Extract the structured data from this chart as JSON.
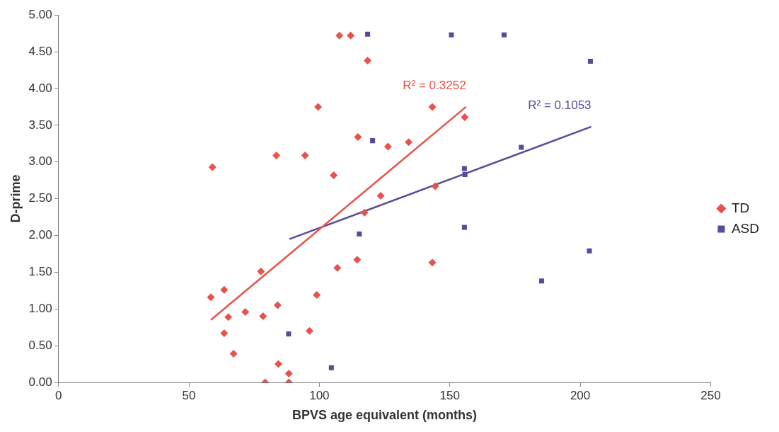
{
  "chart_data": {
    "type": "scatter",
    "xlabel": "BPVS age equivalent (months)",
    "ylabel": "D-prime",
    "xlim": [
      0,
      250
    ],
    "xticks": [
      0,
      50,
      100,
      150,
      200,
      250
    ],
    "ylim": [
      0,
      5
    ],
    "yticks": [
      {
        "value": 0,
        "label": "0.00"
      },
      {
        "value": 0.5,
        "label": "0.50"
      },
      {
        "value": 1,
        "label": "1.00"
      },
      {
        "value": 1.5,
        "label": "1.50"
      },
      {
        "value": 2,
        "label": "2.00"
      },
      {
        "value": 2.5,
        "label": "2.50"
      },
      {
        "value": 3,
        "label": "3.00"
      },
      {
        "value": 3.5,
        "label": "3.50"
      },
      {
        "value": 4,
        "label": "4.00"
      },
      {
        "value": 4.5,
        "label": "4.50"
      },
      {
        "value": 5,
        "label": "5.00"
      }
    ],
    "grid": false,
    "legend": "right",
    "series": [
      {
        "name": "TD",
        "color": "#e8524a",
        "marker": "diamond",
        "x": [
          59,
          58.4,
          63.5,
          63.5,
          65.1,
          67.1,
          71.6,
          77.6,
          78.4,
          79.2,
          83.5,
          84,
          84.3,
          88.3,
          88.3,
          94.5,
          96.2,
          99,
          99.5,
          105.5,
          106.9,
          107.7,
          112,
          114.5,
          114.8,
          118.5,
          117.3,
          123.5,
          126.3,
          134.2,
          143.3,
          143.3,
          144.4,
          155.7
        ],
        "values": [
          2.93,
          1.16,
          1.26,
          0.67,
          0.89,
          0.39,
          0.96,
          1.51,
          0.9,
          0,
          3.09,
          1.05,
          0.25,
          0.12,
          0,
          3.09,
          0.7,
          1.19,
          3.75,
          2.82,
          1.56,
          4.72,
          4.72,
          1.67,
          3.34,
          4.38,
          2.31,
          2.54,
          3.21,
          3.27,
          3.75,
          1.63,
          2.67,
          3.61
        ]
      },
      {
        "name": "ASD",
        "color": "#5b4a9a",
        "marker": "square",
        "x": [
          88.2,
          104.6,
          115.3,
          118.5,
          120.4,
          150.6,
          155.6,
          155.8,
          155.6,
          170.8,
          177.4,
          185.2,
          203.5,
          203.9
        ],
        "values": [
          0.66,
          0.2,
          2.02,
          4.74,
          3.29,
          4.73,
          2.91,
          2.83,
          2.11,
          4.73,
          3.2,
          1.38,
          1.79,
          4.37
        ]
      },
      {
        "type": "line",
        "color": "#e8524a",
        "x": [
          58.4,
          156.2
        ],
        "values": [
          0.85,
          3.75
        ]
      },
      {
        "type": "line",
        "color": "#5b4a9a",
        "x": [
          88.5,
          204.2
        ],
        "values": [
          1.95,
          3.48
        ]
      }
    ],
    "annotations": [
      "R² = 0.3252",
      "R² = 0.1053"
    ]
  }
}
